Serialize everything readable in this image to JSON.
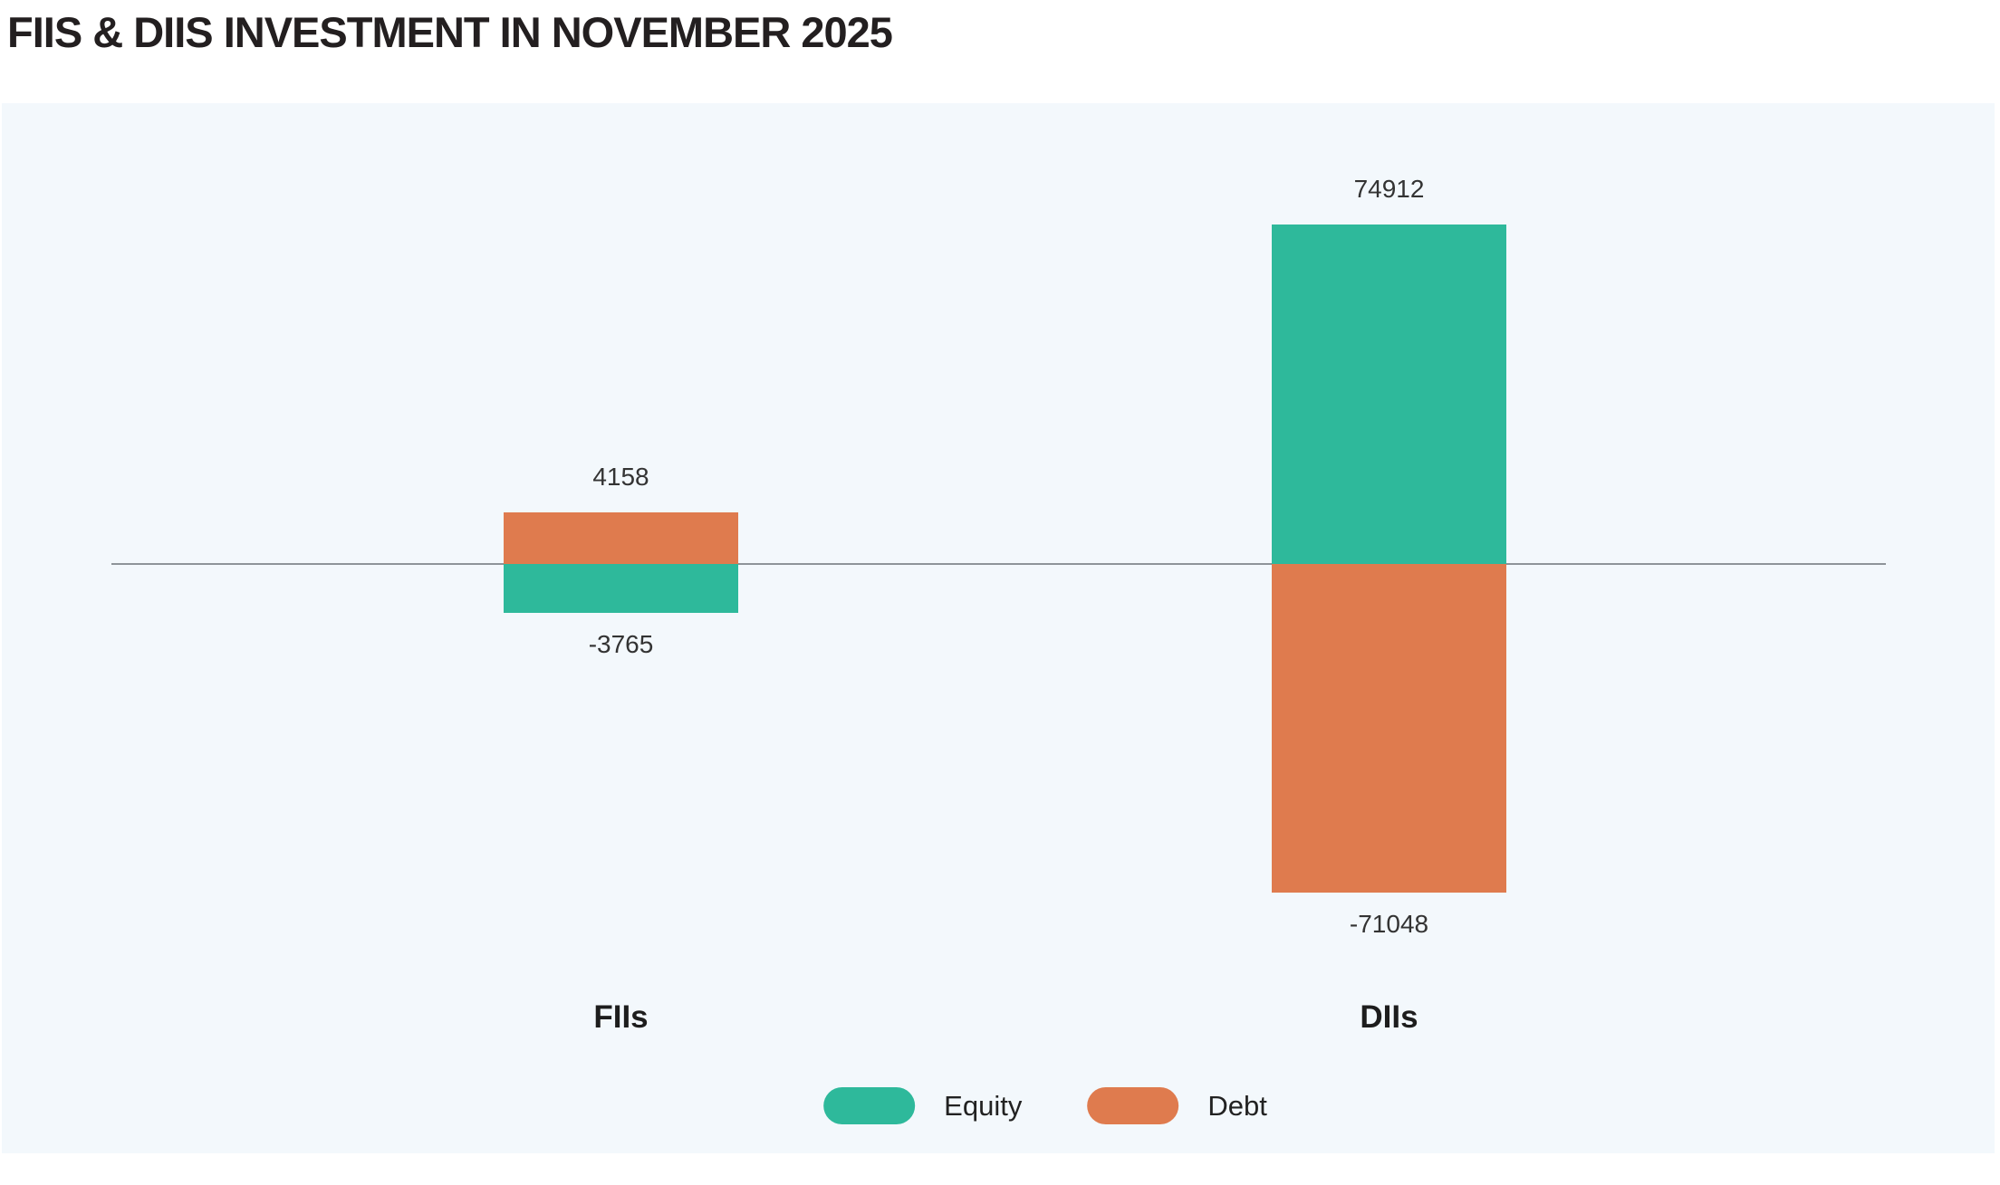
{
  "title": "FIIS & DIIS INVESTMENT IN NOVEMBER 2025",
  "colors": {
    "equity": "#2EB99B",
    "debt": "#DF7B4E",
    "panel_background": "#F3F8FC",
    "zero_line": "#8E9499",
    "title_text": "#231F20",
    "value_label_text": "#333333",
    "category_label_text": "#1D1D1D",
    "legend_label_text": "#222222"
  },
  "chart_data": {
    "type": "bar",
    "categories": [
      "FIIs",
      "DIIs"
    ],
    "series": [
      {
        "name": "Equity",
        "values": [
          -3765,
          74912
        ]
      },
      {
        "name": "Debt",
        "values": [
          4158,
          -71048
        ]
      }
    ],
    "title": "FIIS & DIIS INVESTMENT IN NOVEMBER 2025",
    "xlabel": "",
    "ylabel": "",
    "grid": false,
    "axis_line": "zero-baseline-only",
    "data_labels": true,
    "legend_position": "bottom"
  },
  "legend": {
    "items": [
      {
        "label": "Equity",
        "color": "#2EB99B"
      },
      {
        "label": "Debt",
        "color": "#DF7B4E"
      }
    ]
  }
}
